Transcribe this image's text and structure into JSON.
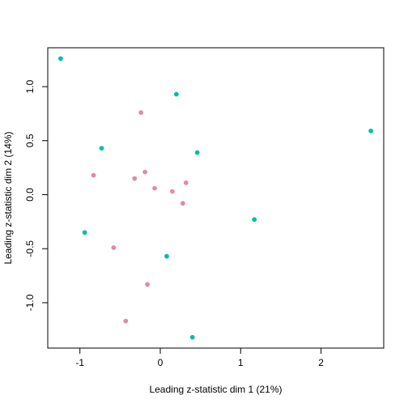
{
  "chart_data": {
    "type": "scatter",
    "title": "",
    "xlabel": "Leading z-statistic dim 1 (21%)",
    "ylabel": "Leading z-statistic dim 2 (14%)",
    "xlim": [
      -1.4,
      2.78
    ],
    "ylim": [
      -1.42,
      1.36
    ],
    "x_ticks": [
      -1,
      0,
      1,
      2
    ],
    "y_ticks": [
      -1.0,
      -0.5,
      0.0,
      0.5,
      1.0
    ],
    "x_tick_labels": [
      "-1",
      "0",
      "1",
      "2"
    ],
    "y_tick_labels": [
      "-1.0",
      "-0.5",
      "0.0",
      "0.5",
      "1.0"
    ],
    "grid": false,
    "legend": "none",
    "series": [
      {
        "color": "#E28BA3",
        "points": [
          {
            "x": -0.24,
            "y": 0.76
          },
          {
            "x": -0.83,
            "y": 0.18
          },
          {
            "x": -0.19,
            "y": 0.21
          },
          {
            "x": -0.32,
            "y": 0.15
          },
          {
            "x": -0.07,
            "y": 0.06
          },
          {
            "x": 0.15,
            "y": 0.03
          },
          {
            "x": 0.32,
            "y": 0.11
          },
          {
            "x": 0.28,
            "y": -0.08
          },
          {
            "x": -0.58,
            "y": -0.49
          },
          {
            "x": -0.16,
            "y": -0.83
          },
          {
            "x": -0.43,
            "y": -1.17
          }
        ]
      },
      {
        "color": "#00BFA5",
        "points": [
          {
            "x": -1.24,
            "y": 1.26
          },
          {
            "x": 0.2,
            "y": 0.93
          },
          {
            "x": -0.73,
            "y": 0.43
          },
          {
            "x": 0.46,
            "y": 0.39
          },
          {
            "x": 2.62,
            "y": 0.59
          },
          {
            "x": -0.94,
            "y": -0.35
          },
          {
            "x": 1.17,
            "y": -0.23
          },
          {
            "x": 0.08,
            "y": -0.57
          },
          {
            "x": 0.4,
            "y": -1.32
          }
        ]
      }
    ]
  }
}
